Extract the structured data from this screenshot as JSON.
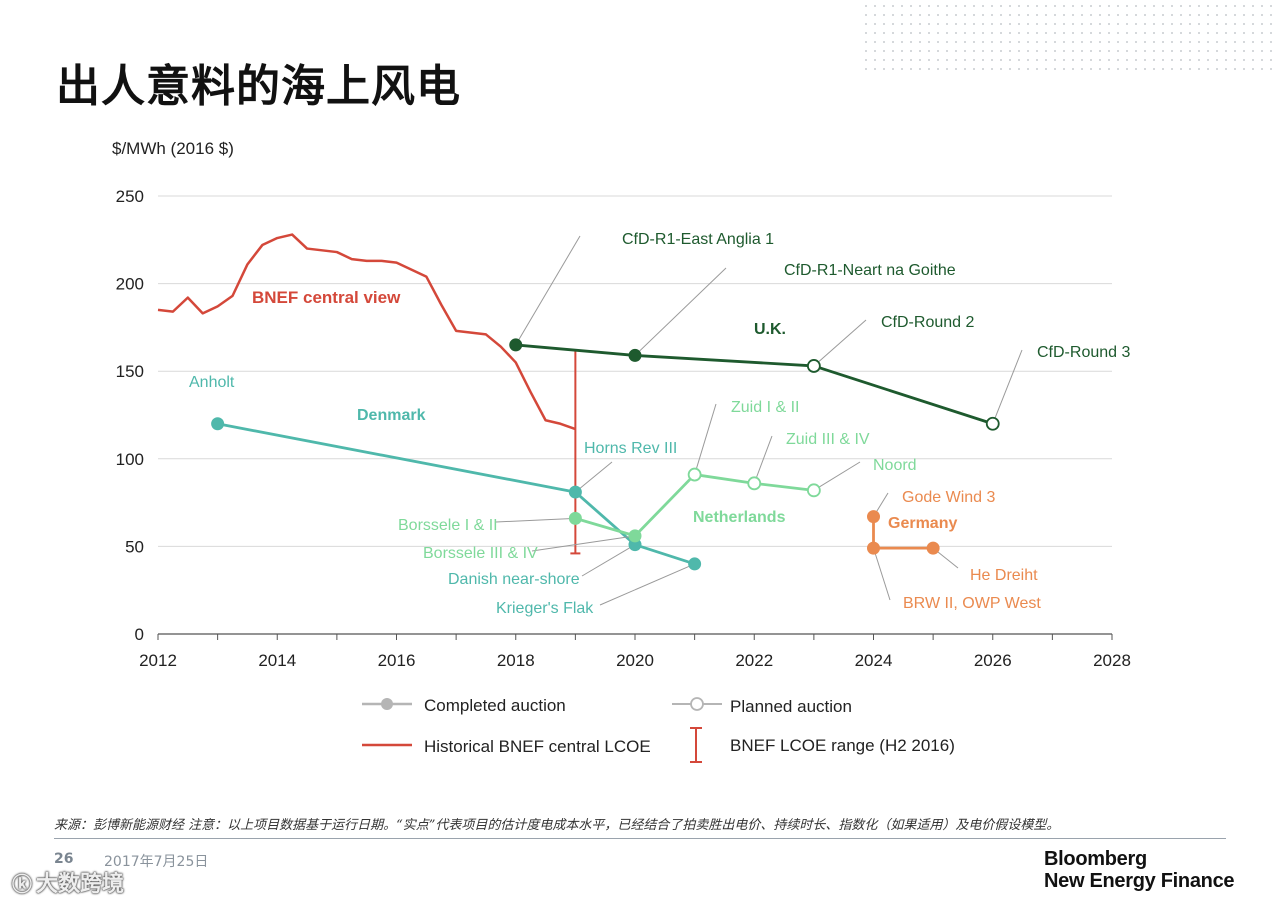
{
  "page": {
    "title": "出人意料的海上风电",
    "footnote": "来源：彭博新能源财经 注意：以上项目数据基于运行日期。“实点”代表项目的估计度电成本水平，已经结合了拍卖胜出电价、持续时长、指数化（如果适用）及电价假设模型。",
    "page_number": "26",
    "date": "2017年7月25日",
    "watermark": "大数跨境",
    "brand_line1": "Bloomberg",
    "brand_line2": "New Energy Finance"
  },
  "colors": {
    "bnef": "#d4483a",
    "uk": "#1e5a2e",
    "denmark": "#4fb8ab",
    "netherlands": "#7fd99a",
    "germany": "#ea8a4f",
    "leader": "#9a9a9a",
    "grid": "#d9d9d9"
  },
  "chart_data": {
    "type": "line",
    "ylabel": "$/MWh (2016 $)",
    "xlim": [
      2012,
      2028
    ],
    "ylim": [
      0,
      250
    ],
    "xticks": [
      2012,
      2014,
      2016,
      2018,
      2020,
      2022,
      2024,
      2026,
      2028
    ],
    "yticks": [
      0,
      50,
      100,
      150,
      200,
      250
    ],
    "grid": true,
    "bnef_series": {
      "name": "BNEF central view",
      "x": [
        2012,
        2012.25,
        2012.5,
        2012.75,
        2013,
        2013.25,
        2013.5,
        2013.75,
        2014,
        2014.25,
        2014.5,
        2014.75,
        2015,
        2015.25,
        2015.5,
        2015.75,
        2016,
        2016.25,
        2016.5,
        2016.75,
        2017,
        2017.25,
        2017.5,
        2017.75,
        2018,
        2018.25,
        2018.5,
        2018.75,
        2019
      ],
      "y": [
        185,
        184,
        192,
        183,
        187,
        193,
        211,
        222,
        226,
        228,
        220,
        219,
        218,
        214,
        213,
        213,
        212,
        208,
        204,
        188,
        173,
        172,
        171,
        164,
        155,
        138,
        122,
        120,
        117
      ]
    },
    "lcoe_range": {
      "label": "BNEF LCOE range (H2 2016)",
      "x": 2019,
      "low": 46,
      "high": 162
    },
    "series": [
      {
        "name": "U.K.",
        "color_key": "uk",
        "points": [
          {
            "label": "CfD-R1-East Anglia 1",
            "x": 2018,
            "y": 165,
            "status": "completed"
          },
          {
            "label": "CfD-R1-Neart na Goithe",
            "x": 2020,
            "y": 159,
            "status": "completed"
          },
          {
            "label": "CfD-Round 2",
            "x": 2023,
            "y": 153,
            "status": "planned"
          },
          {
            "label": "CfD-Round 3",
            "x": 2026,
            "y": 120,
            "status": "planned"
          }
        ]
      },
      {
        "name": "Denmark",
        "color_key": "denmark",
        "points": [
          {
            "label": "Anholt",
            "x": 2013,
            "y": 120,
            "status": "completed"
          },
          {
            "label": "Horns Rev III",
            "x": 2019,
            "y": 81,
            "status": "completed"
          },
          {
            "label": "Danish near-shore",
            "x": 2020,
            "y": 51,
            "status": "completed"
          },
          {
            "label": "Krieger's Flak",
            "x": 2021,
            "y": 40,
            "status": "completed"
          }
        ]
      },
      {
        "name": "Netherlands",
        "color_key": "netherlands",
        "points": [
          {
            "label": "Borssele I & II",
            "x": 2019,
            "y": 66,
            "status": "completed"
          },
          {
            "label": "Borssele III & IV",
            "x": 2020,
            "y": 56,
            "status": "completed"
          },
          {
            "label": "Zuid I & II",
            "x": 2021,
            "y": 91,
            "status": "planned"
          },
          {
            "label": "Zuid III & IV",
            "x": 2022,
            "y": 86,
            "status": "planned"
          },
          {
            "label": "Noord",
            "x": 2023,
            "y": 82,
            "status": "planned"
          }
        ]
      },
      {
        "name": "Germany",
        "color_key": "germany",
        "points": [
          {
            "label": "Gode Wind 3",
            "x": 2024,
            "y": 67,
            "status": "completed"
          },
          {
            "label": "BRW II, OWP West",
            "x": 2024,
            "y": 49,
            "status": "completed"
          },
          {
            "label": "He Dreiht",
            "x": 2025,
            "y": 49,
            "status": "completed"
          }
        ]
      }
    ],
    "legend": [
      {
        "key": "completed",
        "label": "Completed auction"
      },
      {
        "key": "planned",
        "label": "Planned auction"
      },
      {
        "key": "bnef",
        "label": "Historical BNEF central  LCOE"
      },
      {
        "key": "range",
        "label": "BNEF LCOE range (H2 2016)"
      }
    ]
  }
}
